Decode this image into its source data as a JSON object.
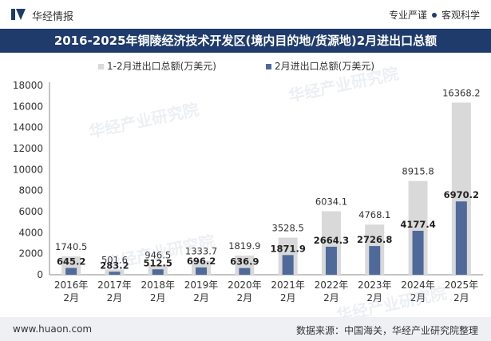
{
  "header": {
    "brand": "华经情报",
    "tagline_left": "专业严谨",
    "tagline_right": "客观科学"
  },
  "title": "2016-2025年铜陵经济技术开发区(境内目的地/货源地)2月进出口总额",
  "footer": {
    "site": "www.huaon.com",
    "source": "数据来源：中国海关，华经产业研究院整理"
  },
  "watermark": "华经产业研究院",
  "colors": {
    "titlebar": "#1f3b6b",
    "series_cumulative": "#d9d9d9",
    "series_month": "#4f6a9a"
  },
  "chart_data": {
    "type": "bar",
    "categories": [
      "2016年\n2月",
      "2017年\n2月",
      "2018年\n2月",
      "2019年\n2月",
      "2020年\n2月",
      "2021年\n2月",
      "2022年\n2月",
      "2023年\n2月",
      "2024年\n2月",
      "2025年\n2月"
    ],
    "series": [
      {
        "name": "1-2月进出口总额(万美元)",
        "values": [
          1740.5,
          501.6,
          946.5,
          1333.7,
          1819.9,
          3528.5,
          6034.1,
          4768.1,
          8915.8,
          16368.2
        ]
      },
      {
        "name": "2月进出口总额(万美元)",
        "values": [
          645.2,
          283.2,
          512.5,
          696.2,
          636.9,
          1871.9,
          2664.3,
          2726.8,
          4177.4,
          6970.2
        ]
      }
    ],
    "ylim": [
      0,
      18000
    ],
    "yticks": [
      0,
      2000,
      4000,
      6000,
      8000,
      10000,
      12000,
      14000,
      16000,
      18000
    ],
    "legend_position": "top",
    "grid": false
  }
}
